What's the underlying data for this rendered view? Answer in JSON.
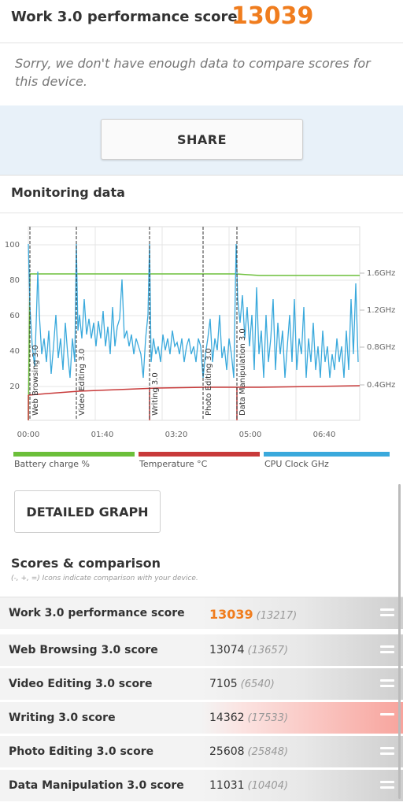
{
  "header": {
    "title": "Work 3.0 performance score",
    "score": "13039",
    "message": "Sorry, we don't have enough data to compare scores for this device."
  },
  "share": {
    "label": "SHARE"
  },
  "monitoring": {
    "title": "Monitoring data",
    "detailed_graph_label": "DETAILED GRAPH"
  },
  "chart_data": {
    "type": "line",
    "x_ticks": [
      "00:00",
      "01:40",
      "03:20",
      "05:00",
      "06:40"
    ],
    "y_left_ticks": [
      "100",
      "80",
      "60",
      "40",
      "20"
    ],
    "y_right_ticks": [
      "1.6GHz",
      "1.2GHz",
      "0.8GHz",
      "0.4GHz"
    ],
    "ylim": [
      0,
      100
    ],
    "markers": [
      "Web Browsing 3.0",
      "Video Editing 3.0",
      "Writing 3.0",
      "Photo Editing 3.0",
      "Data Manipulation 3.0"
    ],
    "series": [
      {
        "name": "Battery charge %",
        "color": "#6cbf3a"
      },
      {
        "name": "Temperature °C",
        "color": "#c83a3a"
      },
      {
        "name": "CPU Clock GHz",
        "color": "#3aa9dc"
      }
    ]
  },
  "scores": {
    "title": "Scores & comparison",
    "subtitle": "(-, +, =) Icons indicate comparison with your device.",
    "rows": [
      {
        "label": "Work 3.0 performance score",
        "value": "13039",
        "compare": "(13217)"
      },
      {
        "label": "Web Browsing 3.0 score",
        "value": "13074",
        "compare": "(13657)"
      },
      {
        "label": "Video Editing 3.0 score",
        "value": "7105",
        "compare": "(6540)"
      },
      {
        "label": "Writing 3.0 score",
        "value": "14362",
        "compare": "(17533)"
      },
      {
        "label": "Photo Editing 3.0 score",
        "value": "25608",
        "compare": "(25848)"
      },
      {
        "label": "Data Manipulation 3.0 score",
        "value": "11031",
        "compare": "(10404)"
      }
    ]
  },
  "colors": {
    "accent": "#f07d1e",
    "share_band": "#e8f1f9",
    "battery": "#6cbf3a",
    "temperature": "#c83a3a",
    "cpu": "#3aa9dc"
  }
}
